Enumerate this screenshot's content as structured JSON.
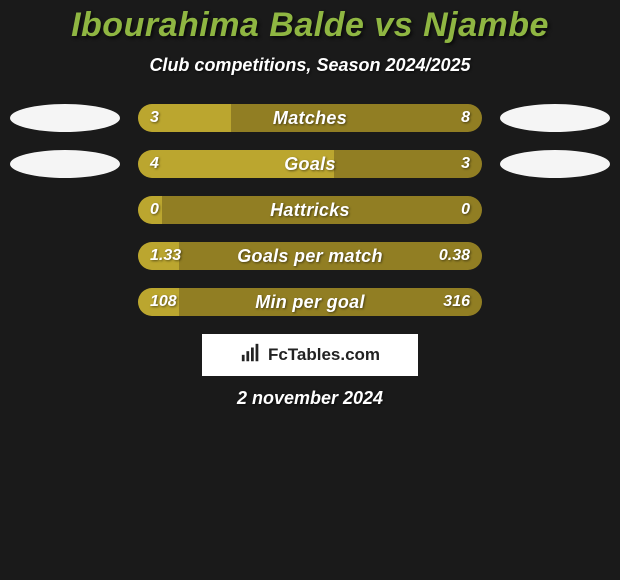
{
  "background_color": "#1a1a1a",
  "title": {
    "text": "Ibourahima Balde vs Njambe",
    "color": "#8fb642",
    "fontsize": 34
  },
  "subtitle": {
    "text": "Club competitions, Season 2024/2025",
    "color": "#ffffff",
    "fontsize": 18
  },
  "oval_color": "#f5f5f5",
  "bar_track_color": "#917e23",
  "bar_fill_color": "#bba62f",
  "bar_text_color": "#ffffff",
  "rows": [
    {
      "label": "Matches",
      "left_val": "3",
      "right_val": "8",
      "fill_pct": 27,
      "show_ovals": true
    },
    {
      "label": "Goals",
      "left_val": "4",
      "right_val": "3",
      "fill_pct": 57,
      "show_ovals": true
    },
    {
      "label": "Hattricks",
      "left_val": "0",
      "right_val": "0",
      "fill_pct": 7,
      "show_ovals": false
    },
    {
      "label": "Goals per match",
      "left_val": "1.33",
      "right_val": "0.38",
      "fill_pct": 12,
      "show_ovals": false
    },
    {
      "label": "Min per goal",
      "left_val": "108",
      "right_val": "316",
      "fill_pct": 12,
      "show_ovals": false
    }
  ],
  "logo": {
    "text": "FcTables.com",
    "bg_color": "#ffffff",
    "text_color": "#222222"
  },
  "date": {
    "text": "2 november 2024",
    "color": "#ffffff"
  }
}
